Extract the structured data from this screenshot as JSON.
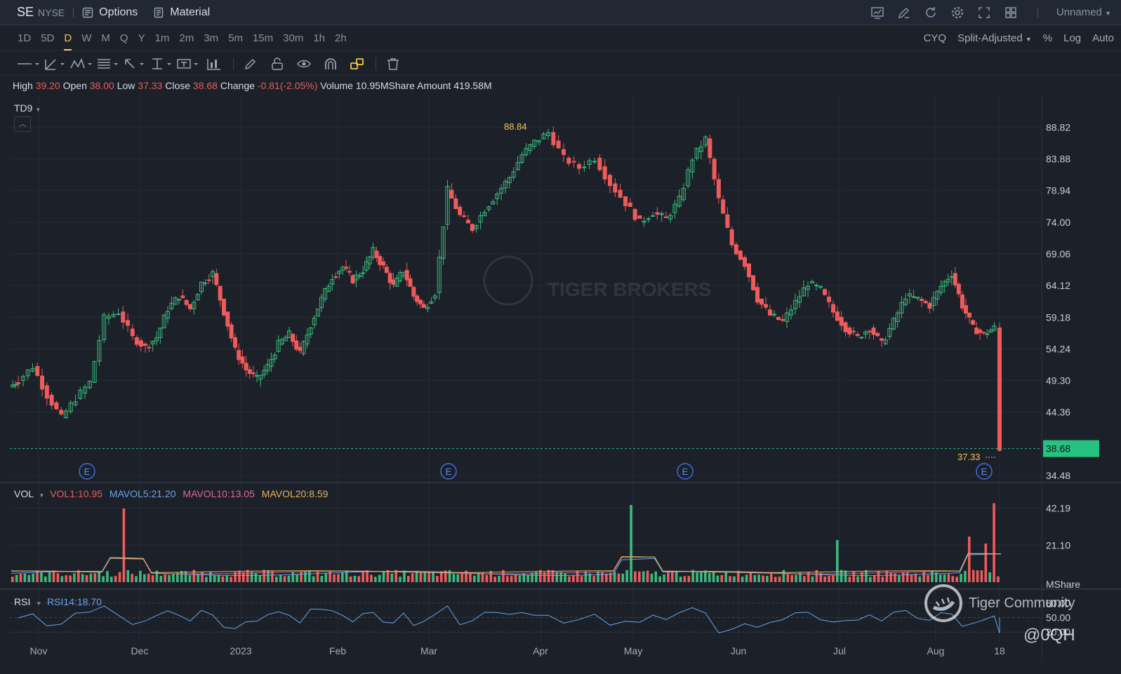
{
  "header": {
    "ticker": "SE",
    "exchange": "NYSE",
    "options_label": "Options",
    "material_label": "Material",
    "layout_name": "Unnamed",
    "icons": [
      "chart-icon",
      "edit-icon",
      "refresh-icon",
      "settings-icon",
      "fullscreen-icon",
      "grid-icon"
    ]
  },
  "periods": [
    "1D",
    "5D",
    "D",
    "W",
    "M",
    "Q",
    "Y",
    "1m",
    "2m",
    "3m",
    "5m",
    "15m",
    "30m",
    "1h",
    "2h"
  ],
  "active_period": "D",
  "chart_options": {
    "cyq": "CYQ",
    "adjust": "Split-Adjusted",
    "percent": "%",
    "log": "Log",
    "auto": "Auto"
  },
  "drawing_tools": [
    "line-tool-icon",
    "trend-tool-icon",
    "pattern-tool-icon",
    "fib-tool-icon",
    "arrow-tool-icon",
    "measure-tool-icon",
    "text-tool-icon",
    "indicator-tool-icon",
    "pencil-icon",
    "lock-icon",
    "eye-icon",
    "magnet-icon",
    "link-icon",
    "trash-icon"
  ],
  "ohlc": {
    "high_label": "High",
    "high": "39.20",
    "open_label": "Open",
    "open": "38.00",
    "low_label": "Low",
    "low": "37.33",
    "close_label": "Close",
    "close": "38.68",
    "change_label": "Change",
    "change": "-0.81(-2.05%)",
    "volume_label": "Volume",
    "volume": "10.95MShare",
    "amount_label": "Amount",
    "amount": "419.58M"
  },
  "main_panel": {
    "indicator": "TD9",
    "y_ticks": [
      "88.82",
      "83.88",
      "78.94",
      "74.00",
      "69.06",
      "64.12",
      "59.18",
      "54.24",
      "49.30",
      "44.36",
      "38.68",
      "34.48"
    ],
    "last_price": "38.68",
    "high_marker": "88.84",
    "low_marker": "37.33",
    "earnings_marker": "E"
  },
  "volume_panel": {
    "label": "VOL",
    "vol1": "VOL1:10.95",
    "mavol5": "MAVOL5:21.20",
    "mavol10": "MAVOL10:13.05",
    "mavol20": "MAVOL20:8.59",
    "y_ticks": [
      "42.19",
      "21.10"
    ],
    "unit": "MShare"
  },
  "rsi_panel": {
    "label": "RSI",
    "rsi14": "RSI14:18.70",
    "y_ticks": [
      "80.00",
      "50.00",
      "20.00"
    ]
  },
  "x_axis": [
    "Nov",
    "Dec",
    "2023",
    "Feb",
    "Mar",
    "Apr",
    "May",
    "Jun",
    "Jul",
    "Aug",
    "18"
  ],
  "watermark": {
    "text": "Tiger Community",
    "handle": "@0QH",
    "center_text": "TIGER BROKERS"
  },
  "colors": {
    "up": "#3cb97d",
    "down": "#ef5b5b",
    "accent": "#f2c94c",
    "bg": "#1b2029",
    "mavol5": "#6aa5e6",
    "mavol10": "#e26690",
    "mavol20": "#e3b55a"
  },
  "chart_data": {
    "type": "candlestick",
    "x": [
      "Nov",
      "Dec",
      "2023",
      "Feb",
      "Mar",
      "Apr",
      "May",
      "Jun",
      "Jul",
      "Aug",
      "18"
    ],
    "price_points": [
      {
        "m": "Nov",
        "v": 49.3
      },
      {
        "m": "Nov",
        "v": 51.5
      },
      {
        "m": "Nov",
        "v": 47.0
      },
      {
        "m": "Nov",
        "v": 43.5
      },
      {
        "m": "Nov",
        "v": 46.5
      },
      {
        "m": "Nov",
        "v": 49.0
      },
      {
        "m": "Nov",
        "v": 59.0
      },
      {
        "m": "Nov",
        "v": 60.0
      },
      {
        "m": "Nov",
        "v": 56.0
      },
      {
        "m": "Dec",
        "v": 54.5
      },
      {
        "m": "Dec",
        "v": 56.0
      },
      {
        "m": "Dec",
        "v": 60.5
      },
      {
        "m": "Dec",
        "v": 62.5
      },
      {
        "m": "Dec",
        "v": 60.5
      },
      {
        "m": "Dec",
        "v": 64.5
      },
      {
        "m": "Dec",
        "v": 66.0
      },
      {
        "m": "Dec",
        "v": 60.0
      },
      {
        "m": "Dec",
        "v": 54.0
      },
      {
        "m": "2023",
        "v": 51.0
      },
      {
        "m": "2023",
        "v": 49.5
      },
      {
        "m": "2023",
        "v": 51.5
      },
      {
        "m": "2023",
        "v": 55.0
      },
      {
        "m": "2023",
        "v": 56.5
      },
      {
        "m": "2023",
        "v": 53.5
      },
      {
        "m": "2023",
        "v": 58.0
      },
      {
        "m": "2023",
        "v": 62.0
      },
      {
        "m": "2023",
        "v": 65.5
      },
      {
        "m": "Feb",
        "v": 67.0
      },
      {
        "m": "Feb",
        "v": 65.0
      },
      {
        "m": "Feb",
        "v": 66.5
      },
      {
        "m": "Feb",
        "v": 69.5
      },
      {
        "m": "Feb",
        "v": 67.0
      },
      {
        "m": "Feb",
        "v": 64.0
      },
      {
        "m": "Feb",
        "v": 66.5
      },
      {
        "m": "Feb",
        "v": 62.5
      },
      {
        "m": "Feb",
        "v": 60.5
      },
      {
        "m": "Mar",
        "v": 63.0
      },
      {
        "m": "Mar",
        "v": 79.0
      },
      {
        "m": "Mar",
        "v": 75.0
      },
      {
        "m": "Mar",
        "v": 73.0
      },
      {
        "m": "Mar",
        "v": 76.0
      },
      {
        "m": "Mar",
        "v": 78.5
      },
      {
        "m": "Mar",
        "v": 81.0
      },
      {
        "m": "Mar",
        "v": 84.5
      },
      {
        "m": "Mar",
        "v": 86.5
      },
      {
        "m": "Apr",
        "v": 88.0
      },
      {
        "m": "Apr",
        "v": 84.0
      },
      {
        "m": "Apr",
        "v": 82.5
      },
      {
        "m": "Apr",
        "v": 84.0
      },
      {
        "m": "Apr",
        "v": 80.0
      },
      {
        "m": "Apr",
        "v": 77.0
      },
      {
        "m": "May",
        "v": 74.0
      },
      {
        "m": "May",
        "v": 75.5
      },
      {
        "m": "May",
        "v": 74.5
      },
      {
        "m": "May",
        "v": 77.5
      },
      {
        "m": "May",
        "v": 84.0
      },
      {
        "m": "May",
        "v": 87.0
      },
      {
        "m": "May",
        "v": 77.5
      },
      {
        "m": "May",
        "v": 70.5
      },
      {
        "m": "Jun",
        "v": 67.5
      },
      {
        "m": "Jun",
        "v": 62.0
      },
      {
        "m": "Jun",
        "v": 59.5
      },
      {
        "m": "Jun",
        "v": 58.5
      },
      {
        "m": "Jun",
        "v": 61.5
      },
      {
        "m": "Jun",
        "v": 64.5
      },
      {
        "m": "Jun",
        "v": 63.5
      },
      {
        "m": "Jun",
        "v": 60.0
      },
      {
        "m": "Jul",
        "v": 57.5
      },
      {
        "m": "Jul",
        "v": 56.0
      },
      {
        "m": "Jul",
        "v": 57.5
      },
      {
        "m": "Jul",
        "v": 55.0
      },
      {
        "m": "Jul",
        "v": 58.5
      },
      {
        "m": "Jul",
        "v": 62.5
      },
      {
        "m": "Jul",
        "v": 62.0
      },
      {
        "m": "Jul",
        "v": 61.0
      },
      {
        "m": "Aug",
        "v": 64.0
      },
      {
        "m": "Aug",
        "v": 66.0
      },
      {
        "m": "Aug",
        "v": 61.0
      },
      {
        "m": "Aug",
        "v": 57.5
      },
      {
        "m": "Aug",
        "v": 56.5
      },
      {
        "m": "Aug",
        "v": 57.5
      },
      {
        "m": "18",
        "v": 44.5
      },
      {
        "m": "18",
        "v": 39.5
      },
      {
        "m": "18",
        "v": 38.68
      }
    ],
    "ylim": [
      34.48,
      90.5
    ],
    "volume_ylim": [
      0,
      48
    ],
    "rsi_ylim": [
      0,
      100
    ]
  }
}
